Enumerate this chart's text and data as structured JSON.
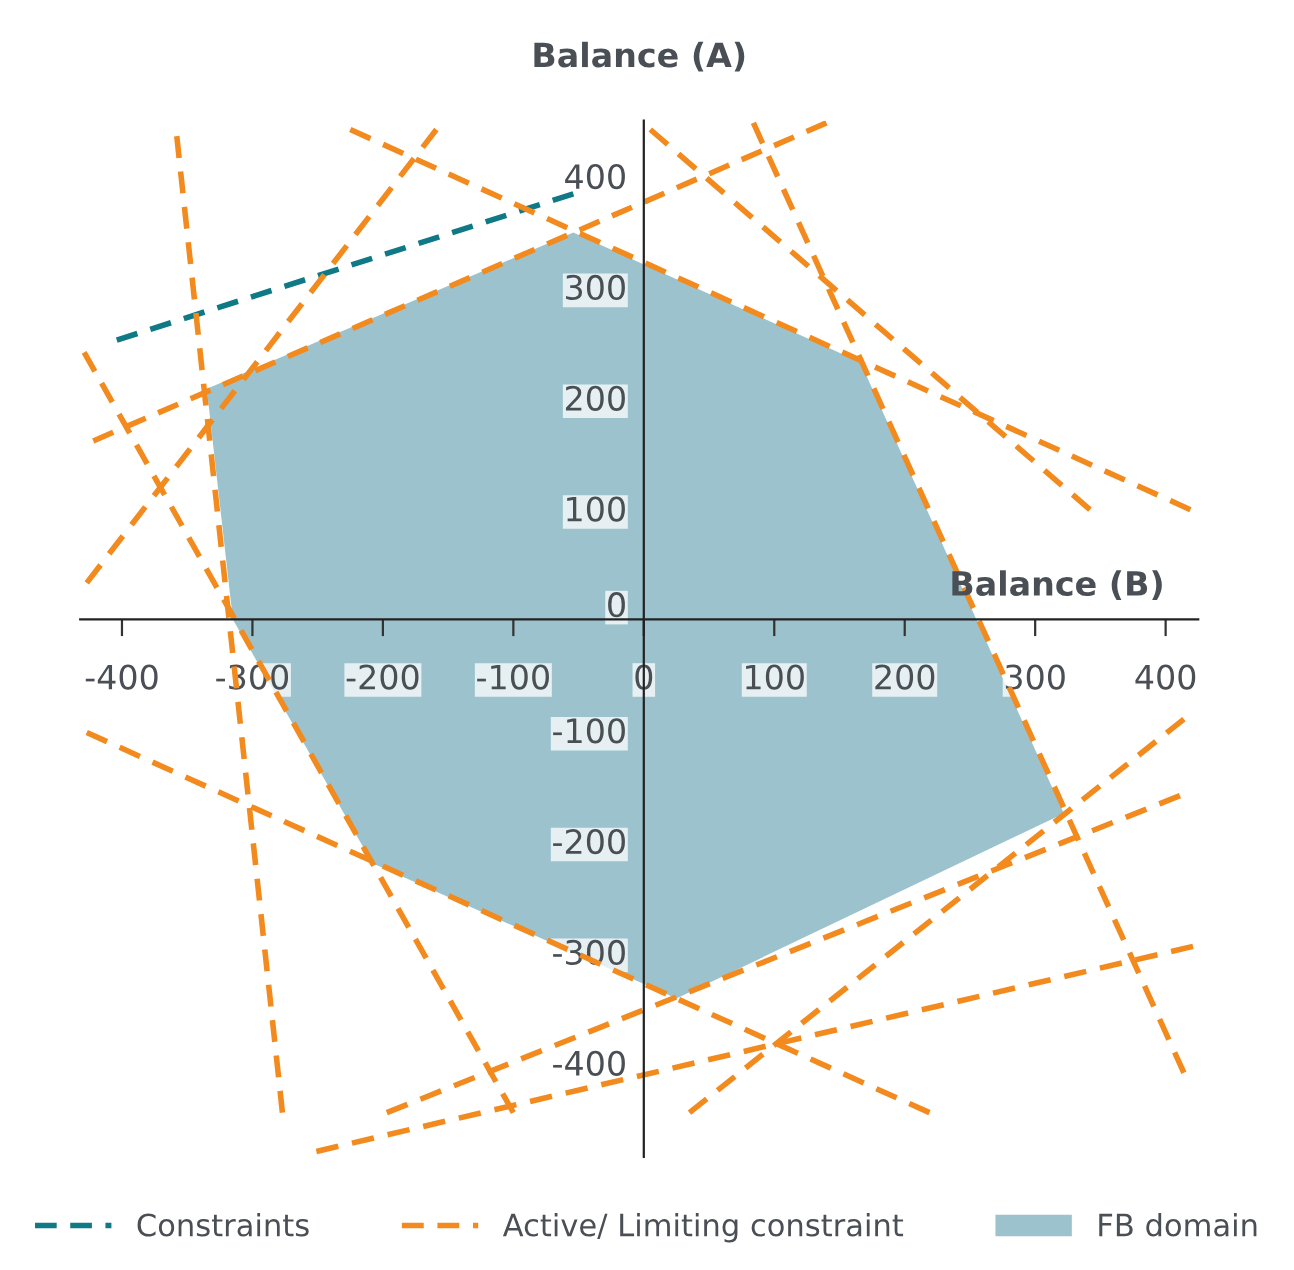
{
  "chart_data": {
    "type": "line",
    "xlabel": "Balance (B)",
    "ylabel": "Balance (A)",
    "xlim": [
      -432,
      425
    ],
    "ylim": [
      -485,
      450
    ],
    "xticks": [
      -400,
      -300,
      -200,
      -100,
      0,
      100,
      200,
      300,
      400
    ],
    "yticks": [
      -400,
      -300,
      -200,
      -100,
      0,
      100,
      200,
      300,
      400
    ],
    "legend": "bottom",
    "line_style": "dashed",
    "series": [
      {
        "type": "area",
        "name": "FB domain",
        "color": "#9cc3cd",
        "x": [
          -335,
          -54,
          166,
          322,
          25,
          -208,
          -315
        ],
        "values": [
          208,
          349,
          232,
          -175,
          -342,
          -220,
          0
        ]
      },
      {
        "name": "Constraints",
        "color": "#0f7a85",
        "x": [
          -404,
          -54
        ],
        "values": [
          252,
          384
        ]
      },
      {
        "type": "line",
        "name": "Active/ Limiting constraint",
        "color": "#f28a1e",
        "x": [
          -358,
          -277
        ],
        "values": [
          436,
          -445
        ]
      },
      {
        "type": "line",
        "color": "#f28a1e",
        "x": [
          -225,
          419
        ],
        "values": [
          442,
          99
        ]
      },
      {
        "type": "line",
        "color": "#f28a1e",
        "x": [
          -422,
          140
        ],
        "values": [
          161,
          448
        ]
      },
      {
        "type": "line",
        "color": "#f28a1e",
        "x": [
          -159,
          -427
        ],
        "values": [
          442,
          33
        ]
      },
      {
        "type": "line",
        "color": "#f28a1e",
        "x": [
          -429,
          -100
        ],
        "values": [
          241,
          -445
        ]
      },
      {
        "type": "line",
        "color": "#f28a1e",
        "x": [
          5,
          342
        ],
        "values": [
          442,
          99
        ]
      },
      {
        "type": "line",
        "color": "#f28a1e",
        "x": [
          84,
          414
        ],
        "values": [
          448,
          -409
        ]
      },
      {
        "type": "line",
        "color": "#f28a1e",
        "x": [
          -427,
          219
        ],
        "values": [
          -102,
          -445
        ]
      },
      {
        "type": "line",
        "color": "#f28a1e",
        "x": [
          -197,
          411
        ],
        "values": [
          -445,
          -159
        ]
      },
      {
        "type": "line",
        "color": "#f28a1e",
        "x": [
          35,
          414
        ],
        "values": [
          -445,
          -90
        ]
      },
      {
        "type": "line",
        "color": "#f28a1e",
        "x": [
          -251,
          421
        ],
        "values": [
          -480,
          -295
        ]
      }
    ]
  }
}
